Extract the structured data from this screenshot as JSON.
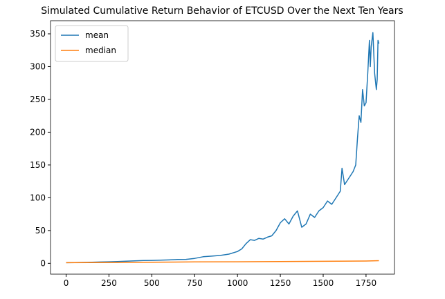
{
  "chart_data": {
    "type": "line",
    "title": "Simulated Cumulative Return Behavior of ETCUSD Over the Next Ten Years",
    "series": [
      {
        "name": "mean",
        "color": "#1f77b4",
        "x": [
          0,
          50,
          100,
          150,
          200,
          250,
          300,
          350,
          400,
          450,
          500,
          550,
          600,
          650,
          700,
          750,
          800,
          850,
          900,
          950,
          1000,
          1025,
          1050,
          1075,
          1100,
          1125,
          1150,
          1175,
          1200,
          1225,
          1250,
          1275,
          1300,
          1325,
          1350,
          1375,
          1400,
          1425,
          1450,
          1475,
          1500,
          1525,
          1550,
          1575,
          1600,
          1610,
          1625,
          1650,
          1675,
          1690,
          1700,
          1710,
          1720,
          1730,
          1740,
          1750,
          1760,
          1770,
          1775,
          1780,
          1790,
          1800,
          1810,
          1815,
          1820,
          1825
        ],
        "values": [
          1,
          1.2,
          1.4,
          1.7,
          2,
          2.3,
          2.7,
          3.2,
          3.8,
          4.3,
          4.5,
          4.8,
          5.2,
          5.8,
          6,
          7.5,
          10,
          11,
          12,
          14,
          18,
          22,
          30,
          36,
          35,
          38,
          37,
          40,
          42,
          50,
          62,
          68,
          60,
          72,
          80,
          55,
          60,
          75,
          70,
          80,
          85,
          95,
          90,
          100,
          110,
          145,
          120,
          130,
          140,
          150,
          190,
          225,
          215,
          265,
          240,
          245,
          290,
          340,
          300,
          330,
          352,
          290,
          265,
          280,
          340,
          335
        ]
      },
      {
        "name": "median",
        "color": "#ff7f0e",
        "x": [
          0,
          250,
          500,
          750,
          1000,
          1250,
          1500,
          1750,
          1825
        ],
        "values": [
          1,
          1.3,
          1.7,
          2.1,
          2.4,
          2.8,
          3.1,
          3.5,
          4
        ]
      }
    ],
    "xlim": [
      -91,
      1916
    ],
    "ylim": [
      -16.5,
      370
    ],
    "xticks": [
      0,
      250,
      500,
      750,
      1000,
      1250,
      1500,
      1750
    ],
    "yticks": [
      0,
      50,
      100,
      150,
      200,
      250,
      300,
      350
    ],
    "legend": "upper left"
  }
}
